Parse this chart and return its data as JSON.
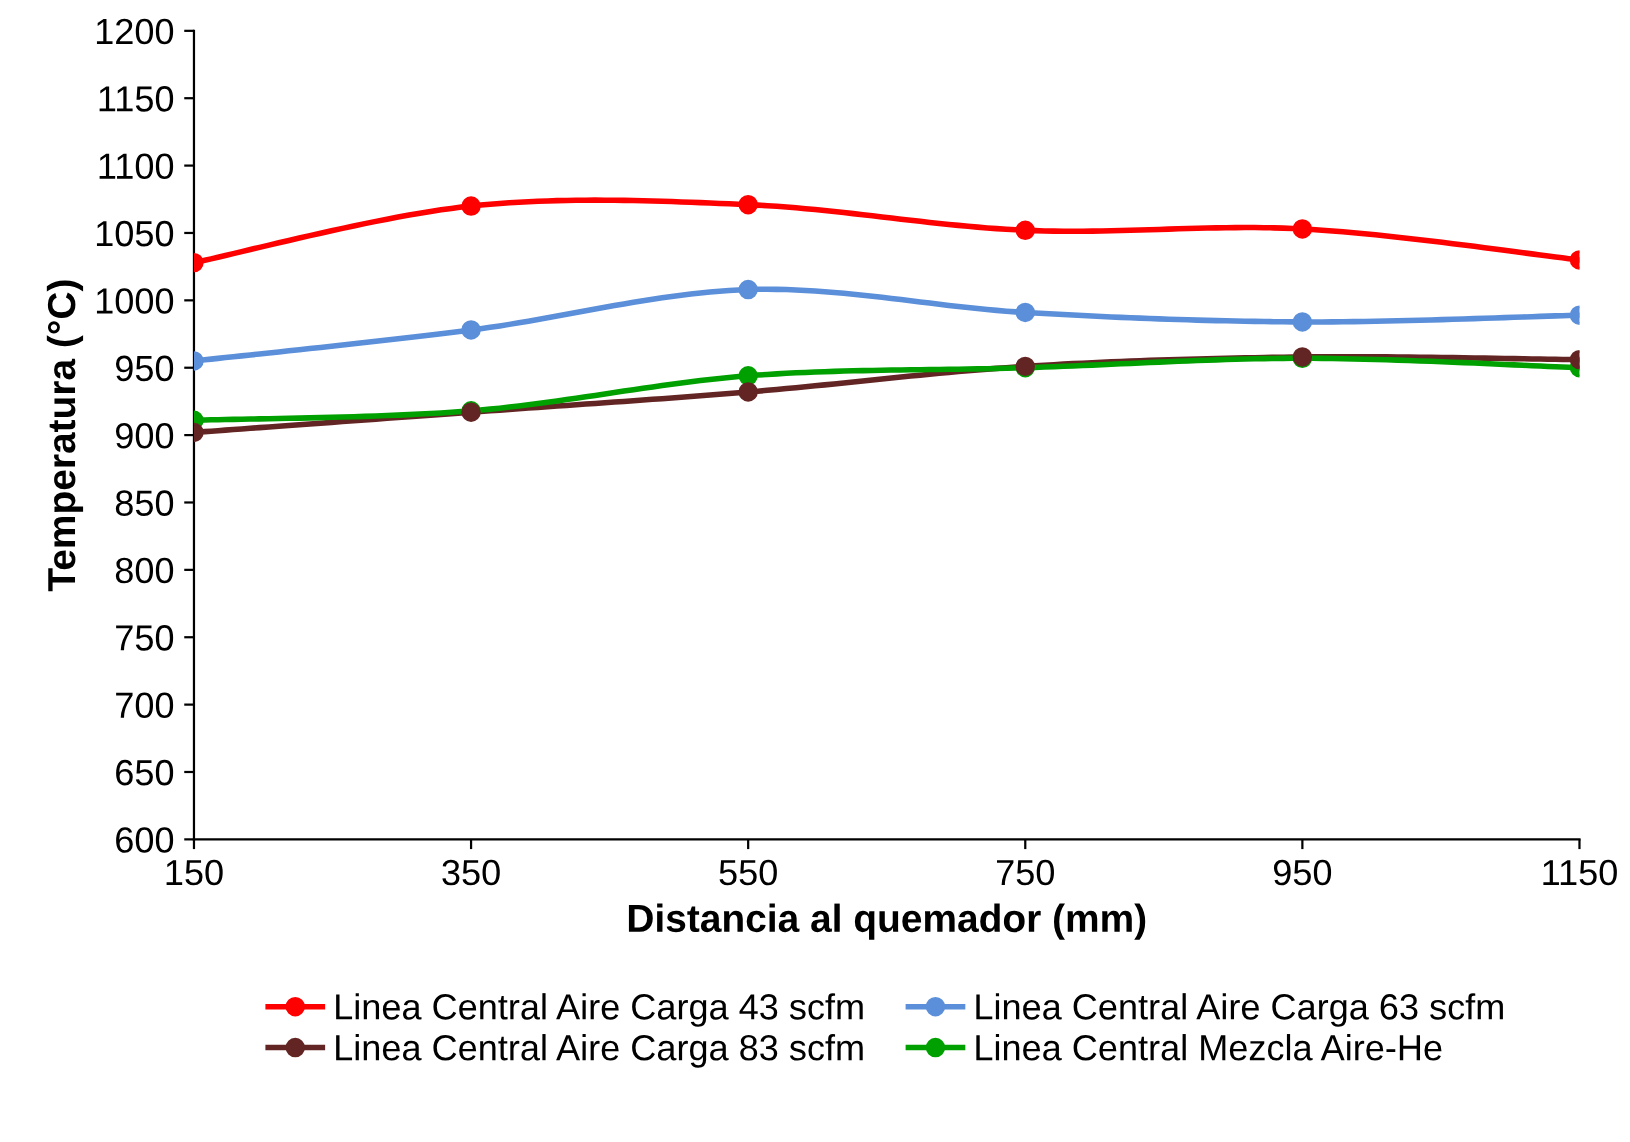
{
  "chart_data": {
    "type": "line",
    "xlabel": "Distancia al quemador (mm)",
    "ylabel": "Temperatura (°C)",
    "x": [
      150,
      350,
      550,
      750,
      950,
      1150
    ],
    "xlim": [
      150,
      1150
    ],
    "xticks": [
      150,
      350,
      550,
      750,
      950,
      1150
    ],
    "ylim": [
      600,
      1200
    ],
    "yticks": [
      600,
      650,
      700,
      750,
      800,
      850,
      900,
      950,
      1000,
      1050,
      1100,
      1150,
      1200
    ],
    "grid": false,
    "legend": "bottom",
    "marker": "circle",
    "line_style": "solid",
    "series": [
      {
        "name": "Linea Central Aire Carga 43 scfm",
        "color": "#ff0000",
        "values": [
          1028,
          1070,
          1071,
          1052,
          1053,
          1030
        ]
      },
      {
        "name": "Linea Central Aire Carga 63 scfm",
        "color": "#5b8fd9",
        "values": [
          955,
          978,
          1008,
          991,
          984,
          989
        ]
      },
      {
        "name": "Linea Central Aire Carga 83 scfm",
        "color": "#632523",
        "values": [
          902,
          917,
          932,
          951,
          958,
          956
        ]
      },
      {
        "name": "Linea Central Mezcla Aire-He",
        "color": "#00a000",
        "values": [
          911,
          918,
          944,
          950,
          957,
          950
        ]
      }
    ]
  }
}
